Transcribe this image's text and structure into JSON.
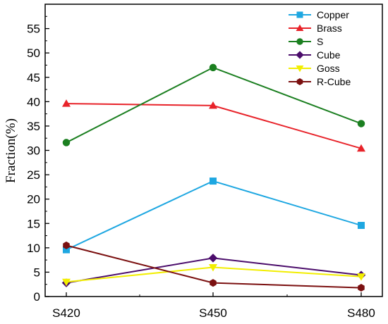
{
  "chart_data": {
    "type": "line",
    "xlabel": "",
    "ylabel": "Fraction(%)",
    "categories": [
      "S420",
      "S450",
      "S480"
    ],
    "ylim": [
      0,
      60
    ],
    "yticks": [
      "0",
      "5",
      "10",
      "15",
      "20",
      "25",
      "30",
      "35",
      "40",
      "45",
      "50",
      "55"
    ],
    "grid": false,
    "legend_position": "top-right",
    "series": [
      {
        "name": "Copper",
        "values": [
          9.6,
          23.7,
          14.6
        ],
        "color": "#1ea7e1",
        "marker": "square"
      },
      {
        "name": "Brass",
        "values": [
          39.6,
          39.2,
          30.4
        ],
        "color": "#e8232a",
        "marker": "triangle-up"
      },
      {
        "name": "S",
        "values": [
          31.6,
          47.0,
          35.5
        ],
        "color": "#1b7f20",
        "marker": "circle"
      },
      {
        "name": "Cube",
        "values": [
          2.8,
          7.9,
          4.4
        ],
        "color": "#4b0d6b",
        "marker": "diamond"
      },
      {
        "name": "Goss",
        "values": [
          3.0,
          6.0,
          4.1
        ],
        "color": "#f2ee00",
        "marker": "triangle-down"
      },
      {
        "name": "R-Cube",
        "values": [
          10.5,
          2.8,
          1.8
        ],
        "color": "#7b1010",
        "marker": "hexagon"
      }
    ]
  }
}
